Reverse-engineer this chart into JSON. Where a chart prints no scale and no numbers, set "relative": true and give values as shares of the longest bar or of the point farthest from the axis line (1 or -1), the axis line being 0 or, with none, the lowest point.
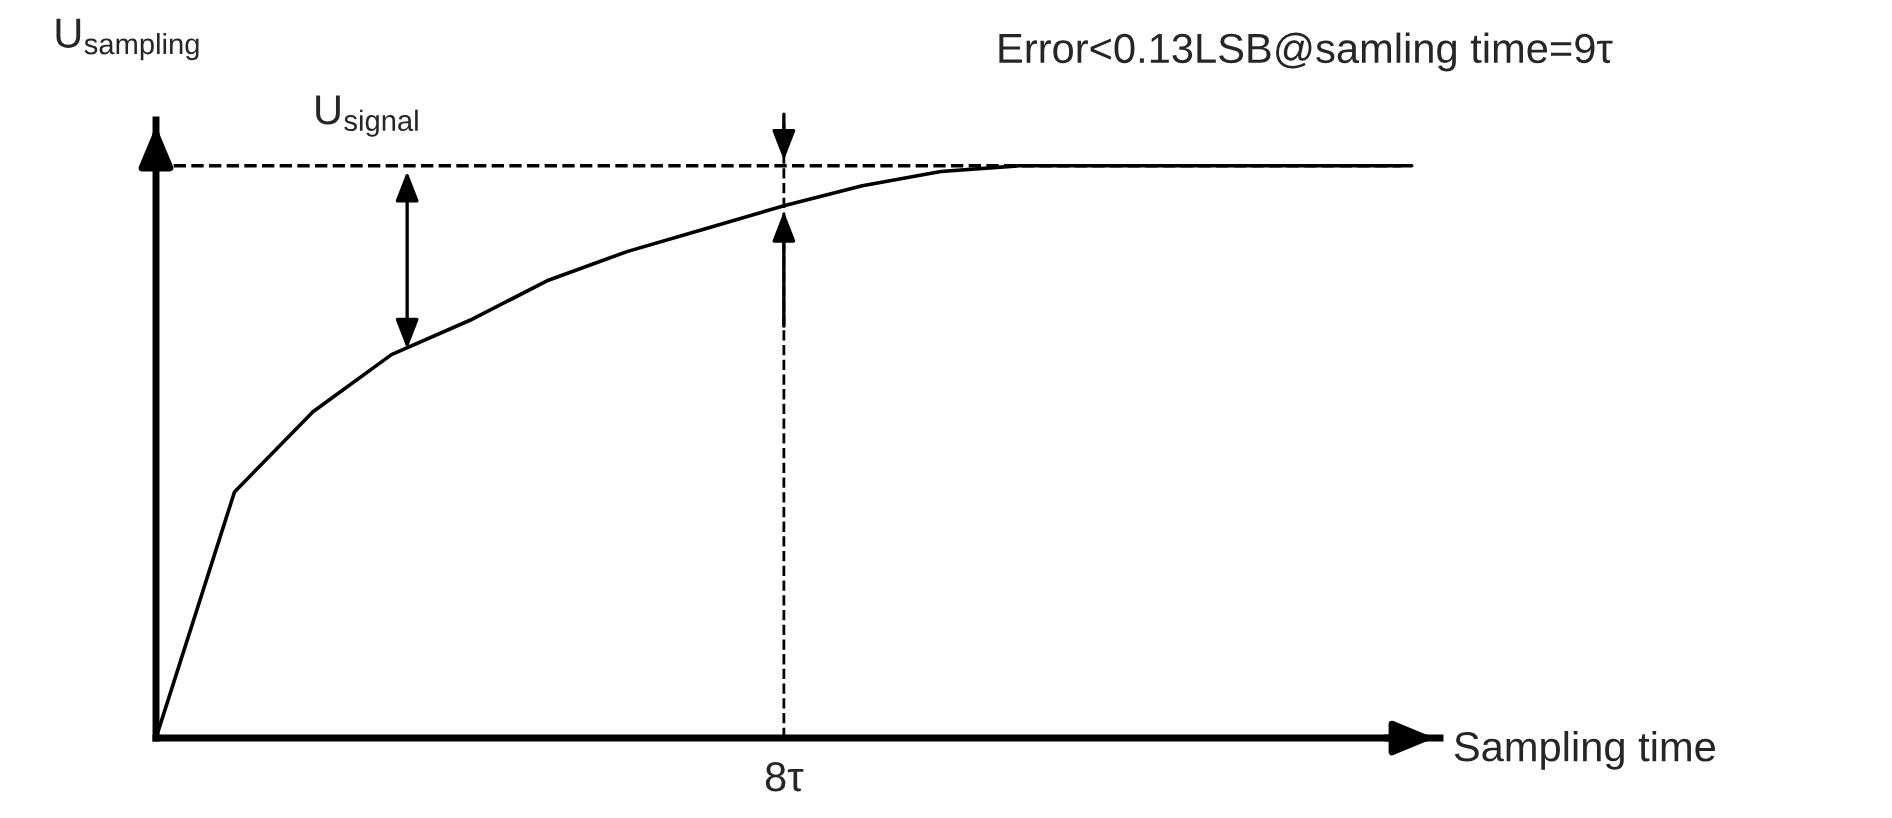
{
  "chart_data": {
    "type": "line",
    "relative": true,
    "xlabel": "Sampling time",
    "ylabel": "U$_{sampling}$",
    "categories": [
      null,
      null,
      null,
      null,
      null,
      null,
      null,
      null,
      null,
      null,
      null,
      null,
      null,
      null,
      null,
      null,
      null
    ],
    "series": [
      {
        "color": "#000000",
        "values": [
          0,
          0.43,
          0.57,
          0.67,
          0.73,
          0.8,
          0.85,
          0.89,
          0.93,
          0.965,
          0.99,
          1,
          1,
          1,
          1,
          1,
          1
        ]
      }
    ],
    "line_style": "solid",
    "marker": "none",
    "ref_lines": [
      {
        "axis": "y",
        "value": 1,
        "label": "U$_{signal}$",
        "line_style": "dashed",
        "color": "#000000"
      }
    ],
    "annotations": [
      "Error<0.13LSB@samling time=9τ",
      "8τ"
    ]
  }
}
